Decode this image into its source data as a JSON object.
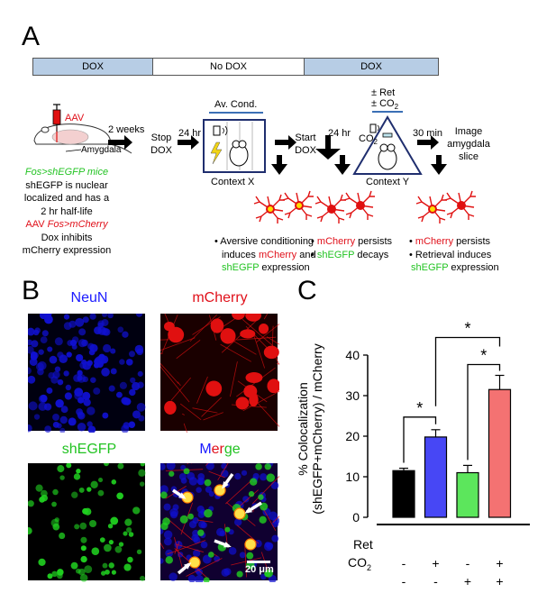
{
  "panels": {
    "a": "A",
    "b": "B",
    "c": "C"
  },
  "timeline": {
    "dox_left": "DOX",
    "no_dox": "No DOX",
    "dox_right": "DOX"
  },
  "schematic": {
    "aav": "AAV",
    "amygdala": "Amygdala",
    "two_weeks": "2 weeks",
    "stop": "Stop",
    "dox": "DOX",
    "hr24_1": "24 hr",
    "av_cond": "Av. Cond.",
    "context_x": "Context X",
    "start": "Start",
    "start_dox": "DOX",
    "hr24_2": "24 hr",
    "ret": "± Ret",
    "co2_top": "± CO",
    "co2_sub": "2",
    "co2_side": "CO",
    "co2_side_sub": "2",
    "context_y": "Context Y",
    "min30": "30 min",
    "image1": "Image",
    "image2": "amygdala",
    "image3": "slice"
  },
  "left_text": {
    "l1": "Fos>shEGFP mice",
    "l2": "shEGFP is nuclear",
    "l3": "localized and has a",
    "l4": "2 hr half-life",
    "l5_a": "AAV ",
    "l5_b": "Fos>mCherry",
    "l6": "Dox inhibits",
    "l7": "mCherry expression"
  },
  "notes": {
    "n1_l1": "• Aversive conditioning",
    "n1_l2a": "induces ",
    "n1_l2b": "mCherry",
    "n1_l2c": " and",
    "n1_l3a": "shEGFP",
    "n1_l3b": " expression",
    "n2_l1a": "• ",
    "n2_l1b": "mCherry",
    "n2_l1c": " persists",
    "n2_l2a": "• ",
    "n2_l2b": "shEGFP",
    "n2_l2c": " decays",
    "n3_l1a": "• ",
    "n3_l1b": "mCherry",
    "n3_l1c": " persists",
    "n3_l2": "• Retrieval induces",
    "n3_l3a": "shEGFP",
    "n3_l3b": " expression"
  },
  "micrographs": {
    "neun": "NeuN",
    "mcherry": "mCherry",
    "shegfp": "shEGFP",
    "merge_m": "M",
    "merge_e": "e",
    "merge_r": "r",
    "merge_g": "g",
    "merge_e2": "e",
    "scale": "20 μm",
    "colors": {
      "neun": "#1010d0",
      "mcherry": "#e01010",
      "shegfp": "#20d020"
    }
  },
  "chart_data": {
    "type": "bar",
    "ylabel_1": "% Colocalization",
    "ylabel_2": "(shEGFP+mCherry) / mCherry",
    "ylim": [
      0,
      40
    ],
    "yticks": [
      "0",
      "10",
      "20",
      "30",
      "40"
    ],
    "values": [
      11.5,
      19.8,
      11.0,
      31.5
    ],
    "errors": [
      0.6,
      1.8,
      1.8,
      3.5
    ],
    "colors": [
      "#000000",
      "#4747f5",
      "#5ce65c",
      "#f47272"
    ],
    "row_labels": {
      "ret": "Ret",
      "co2": "CO",
      "co2_sub": "2"
    },
    "ret_signs": [
      "-",
      "+",
      "-",
      "+"
    ],
    "co2_signs": [
      "-",
      "-",
      "+",
      "+"
    ],
    "significance": [
      "*",
      "*",
      "*"
    ]
  }
}
